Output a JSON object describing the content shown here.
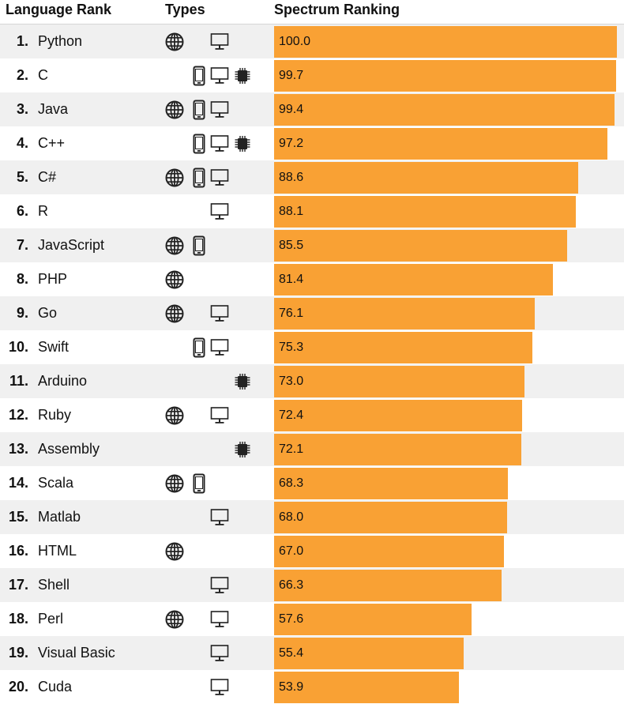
{
  "header": {
    "rank": "Language Rank",
    "types": "Types",
    "spectrum": "Spectrum Ranking"
  },
  "colors": {
    "bar": "#f9a134",
    "row_odd": "#f0f0f0",
    "row_even": "#ffffff"
  },
  "icons": {
    "web": "globe-icon",
    "mobile": "mobile-phone-icon",
    "desktop": "desktop-monitor-icon",
    "embedded": "microchip-icon"
  },
  "chart_data": {
    "type": "bar",
    "orientation": "horizontal",
    "xlim": [
      0,
      100
    ],
    "grid": false,
    "categories": [
      "Python",
      "C",
      "Java",
      "C++",
      "C#",
      "R",
      "JavaScript",
      "PHP",
      "Go",
      "Swift",
      "Arduino",
      "Ruby",
      "Assembly",
      "Scala",
      "Matlab",
      "HTML",
      "Shell",
      "Perl",
      "Visual Basic",
      "Cuda"
    ],
    "ranks": [
      "1.",
      "2.",
      "3.",
      "4.",
      "5.",
      "6.",
      "7.",
      "8.",
      "9.",
      "10.",
      "11.",
      "12.",
      "13.",
      "14.",
      "15.",
      "16.",
      "17.",
      "18.",
      "19.",
      "20."
    ],
    "values": [
      100.0,
      99.7,
      99.4,
      97.2,
      88.6,
      88.1,
      85.5,
      81.4,
      76.1,
      75.3,
      73.0,
      72.4,
      72.1,
      68.3,
      68.0,
      67.0,
      66.3,
      57.6,
      55.4,
      53.9
    ],
    "value_labels": [
      "100.0",
      "99.7",
      "99.4",
      "97.2",
      "88.6",
      "88.1",
      "85.5",
      "81.4",
      "76.1",
      "75.3",
      "73.0",
      "72.4",
      "72.1",
      "68.3",
      "68.0",
      "67.0",
      "66.3",
      "57.6",
      "55.4",
      "53.9"
    ],
    "types": [
      [
        "web",
        "desktop"
      ],
      [
        "mobile",
        "desktop",
        "embedded"
      ],
      [
        "web",
        "mobile",
        "desktop"
      ],
      [
        "mobile",
        "desktop",
        "embedded"
      ],
      [
        "web",
        "mobile",
        "desktop"
      ],
      [
        "desktop"
      ],
      [
        "web",
        "mobile"
      ],
      [
        "web"
      ],
      [
        "web",
        "desktop"
      ],
      [
        "mobile",
        "desktop"
      ],
      [
        "embedded"
      ],
      [
        "web",
        "desktop"
      ],
      [
        "embedded"
      ],
      [
        "web",
        "mobile"
      ],
      [
        "desktop"
      ],
      [
        "web"
      ],
      [
        "desktop"
      ],
      [
        "web",
        "desktop"
      ],
      [
        "desktop"
      ],
      [
        "desktop"
      ]
    ]
  }
}
